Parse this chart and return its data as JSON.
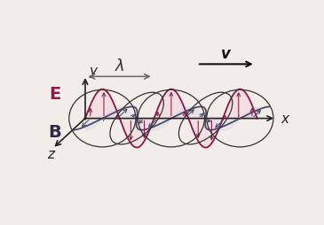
{
  "bg": "#f2ede8",
  "wave_lw": 1.3,
  "amp": 0.85,
  "period": 2.0,
  "x_start": 0.0,
  "x_end": 5.0,
  "E_color": "#8B1A4A",
  "B_color": "#4a4a6a",
  "axis_color": "#222222",
  "fill_E_color": "#f5d5dd",
  "fill_B_color": "#d5d5e5",
  "ellipse_color": "#333333",
  "v_color": "#111111",
  "lambda_color": "#555555",
  "bx_proj": -0.42,
  "by_proj": -0.4,
  "n_arrows": 13,
  "xlim": [
    -1.3,
    6.0
  ],
  "ylim": [
    -1.55,
    1.85
  ]
}
